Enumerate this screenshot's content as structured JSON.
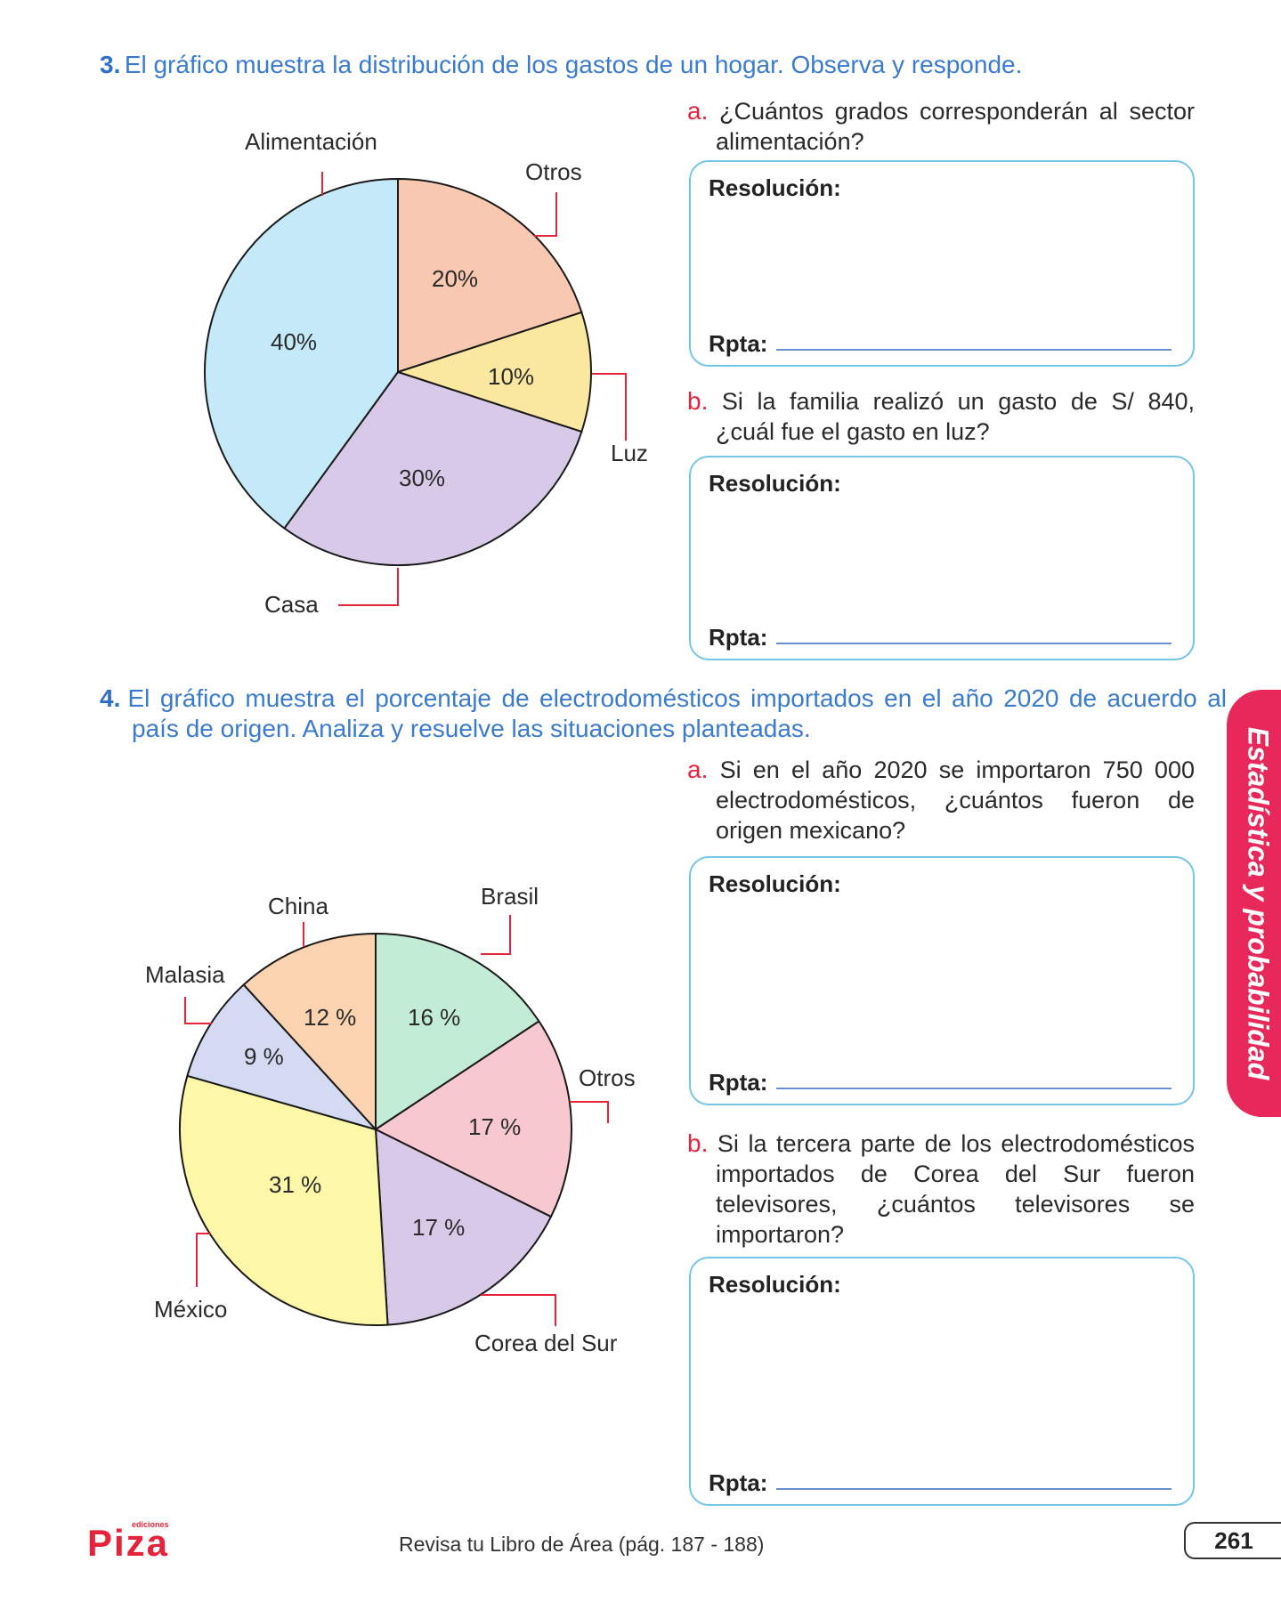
{
  "problem3": {
    "number": "3.",
    "text": "El gráfico muestra la distribución de los gastos de un hogar. Observa y responde.",
    "chart_data": {
      "type": "pie",
      "slices": [
        {
          "label": "Alimentación",
          "value": 40,
          "pct_label": "40%",
          "color": "#c4e9f8"
        },
        {
          "label": "Otros",
          "value": 20,
          "pct_label": "20%",
          "color": "#f9c8b0"
        },
        {
          "label": "Luz",
          "value": 10,
          "pct_label": "10%",
          "color": "#fbe8a0"
        },
        {
          "label": "Casa",
          "value": 30,
          "pct_label": "30%",
          "color": "#d8c9e8"
        }
      ]
    },
    "qa": {
      "letter": "a.",
      "text": "¿Cuántos grados corresponderán al sector alimentación?"
    },
    "qb": {
      "letter": "b.",
      "text": "Si la familia realizó un gasto de S/ 840, ¿cuál fue el gasto en luz?"
    }
  },
  "problem4": {
    "number": "4.",
    "text": "El gráfico muestra el porcentaje de electrodomésticos importados en el año 2020 de acuerdo al país de origen. Analiza y resuelve las situaciones planteadas.",
    "chart_data": {
      "type": "pie",
      "slices": [
        {
          "label": "Brasil",
          "value": 16,
          "pct_label": "16 %",
          "color": "#c3ecd6"
        },
        {
          "label": "Otros",
          "value": 17,
          "pct_label": "17 %",
          "color": "#f8c8d0"
        },
        {
          "label": "Corea del Sur",
          "value": 17,
          "pct_label": "17 %",
          "color": "#d8c9e8"
        },
        {
          "label": "México",
          "value": 31,
          "pct_label": "31 %",
          "color": "#fdf7a8"
        },
        {
          "label": "Malasia",
          "value": 9,
          "pct_label": "9 %",
          "color": "#d3daf2"
        },
        {
          "label": "China",
          "value": 12,
          "pct_label": "12 %",
          "color": "#fbd3b0"
        }
      ]
    },
    "qa": {
      "letter": "a.",
      "text": "Si en el año 2020 se importaron 750 000 electrodomésticos, ¿cuántos fueron de origen mexicano?"
    },
    "qb": {
      "letter": "b.",
      "text": "Si la tercera parte de los electrodomésticos importados de Corea del Sur fueron televisores, ¿cuántos televisores se importaron?"
    }
  },
  "box": {
    "resolucion": "Resolución:",
    "rpta": "Rpta:"
  },
  "side_tab": "Estadística y probabilidad",
  "footer": "Revisa tu Libro de Área (pág. 187 - 188)",
  "page_number": "261",
  "logo": {
    "small": "ediciones",
    "main": "Piza",
    "color": "#e5233b"
  }
}
